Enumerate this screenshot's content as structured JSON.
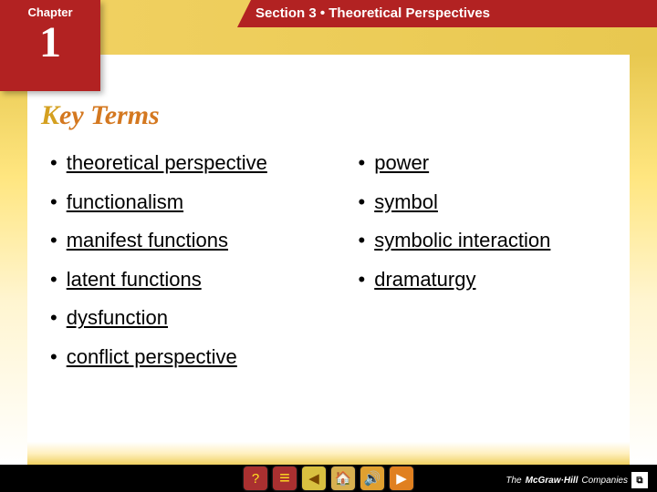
{
  "header": {
    "chapter_label": "Chapter",
    "chapter_number": "1",
    "section_text": "Section 3 • Theoretical Perspectives"
  },
  "title": {
    "first": "K",
    "rest": "ey Terms"
  },
  "terms": {
    "left": [
      "theoretical perspective",
      "functionalism",
      "manifest functions",
      "latent functions",
      "dysfunction",
      "conflict perspective"
    ],
    "right": [
      "power",
      "symbol",
      "symbolic interaction",
      "dramaturgy"
    ]
  },
  "nav": {
    "help": "?",
    "contents": "≡",
    "back": "◀",
    "home": "🏠",
    "audio": "🔊",
    "next": "▶"
  },
  "footer": {
    "company_prefix": "The",
    "company_name": "McGraw·Hill",
    "company_suffix": "Companies",
    "logo_mark": "⧉"
  },
  "styling": {
    "bg_white": "#ffffff",
    "red": "#b22222",
    "gold": "#e8c850",
    "text_black": "#000000",
    "title_color1": "#d4a020",
    "title_color2": "#d47820",
    "term_fontsize": 22,
    "title_fontsize": 30
  }
}
